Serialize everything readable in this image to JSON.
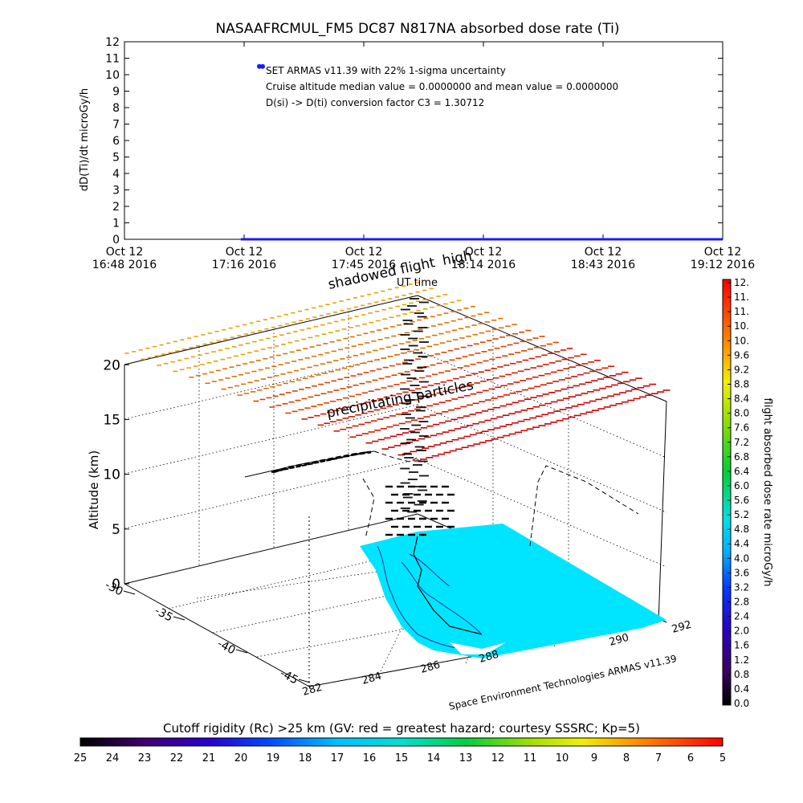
{
  "chart_data": [
    {
      "type": "scatter",
      "title": "NASAAFRCMUL_FM5 DC87 N817NA absorbed dose rate (Ti)",
      "ylabel": "dD(Ti)/dt microGy/h",
      "ylim": [
        0,
        12
      ],
      "yticks": [
        "0",
        "1",
        "2",
        "3",
        "4",
        "5",
        "6",
        "7",
        "8",
        "9",
        "10",
        "11",
        "12"
      ],
      "xticks": [
        {
          "date": "Oct 12",
          "time": "16:48 2016"
        },
        {
          "date": "Oct 12",
          "time": "17:16 2016"
        },
        {
          "date": "Oct 12",
          "time": "17:45 2016"
        },
        {
          "date": "Oct 12",
          "time": "18:14 2016"
        },
        {
          "date": "Oct 12",
          "time": "18:43 2016"
        },
        {
          "date": "Oct 12",
          "time": "19:12 2016"
        }
      ],
      "xlim": [
        "16:48",
        "19:12"
      ],
      "legend_marker_value": 10.5,
      "annotations": [
        "SET ARMAS v11.39 with 22% 1-sigma uncertainty",
        "Cruise altitude median value = 0.0000000 and mean value = 0.0000000",
        "D(si) -> D(ti) conversion factor C3 = 1.30712"
      ],
      "series": [
        {
          "color": "#1a1aff",
          "x_start": "17:16",
          "x_end": "19:12",
          "y": 0
        }
      ]
    },
    {
      "type": "scatter",
      "xlabel": "UT time",
      "ylabel": "Altitude (km)",
      "zlim": [
        0,
        22
      ],
      "altitude_ticks": [
        "0",
        "5",
        "10",
        "15",
        "20"
      ],
      "latitude_ticks": [
        "-30",
        "-35",
        "-40",
        "-45"
      ],
      "longitude_ticks": [
        "282",
        "284",
        "286",
        "288",
        "290",
        "292"
      ],
      "labels": [
        "shadowed flight",
        "high",
        "precipitating particles",
        "Space Environment Technologies ARMAS v11.39"
      ],
      "ground_color": "#00e5ff"
    },
    {
      "type": "heatmap",
      "title": "flight absorbed dose rate microGy/h",
      "colorbar_ticks": [
        "0.0",
        "0.4",
        "0.8",
        "1.2",
        "1.6",
        "2.0",
        "2.4",
        "2.8",
        "3.2",
        "3.6",
        "4.0",
        "4.4",
        "4.8",
        "5.2",
        "5.6",
        "6.0",
        "6.4",
        "6.8",
        "7.2",
        "7.6",
        "8.0",
        "8.4",
        "8.8",
        "9.2",
        "9.6",
        "10.",
        "10.",
        "11.",
        "11.",
        "12."
      ]
    },
    {
      "type": "heatmap",
      "title": "Cutoff rigidity (Rc) >25 km (GV: red = greatest hazard; courtesy SSSRC; Kp=5)",
      "colorbar_ticks": [
        "25",
        "24",
        "23",
        "22",
        "21",
        "20",
        "19",
        "18",
        "17",
        "16",
        "15",
        "14",
        "13",
        "12",
        "11",
        "10",
        "9",
        "8",
        "7",
        "6",
        "5"
      ]
    }
  ]
}
